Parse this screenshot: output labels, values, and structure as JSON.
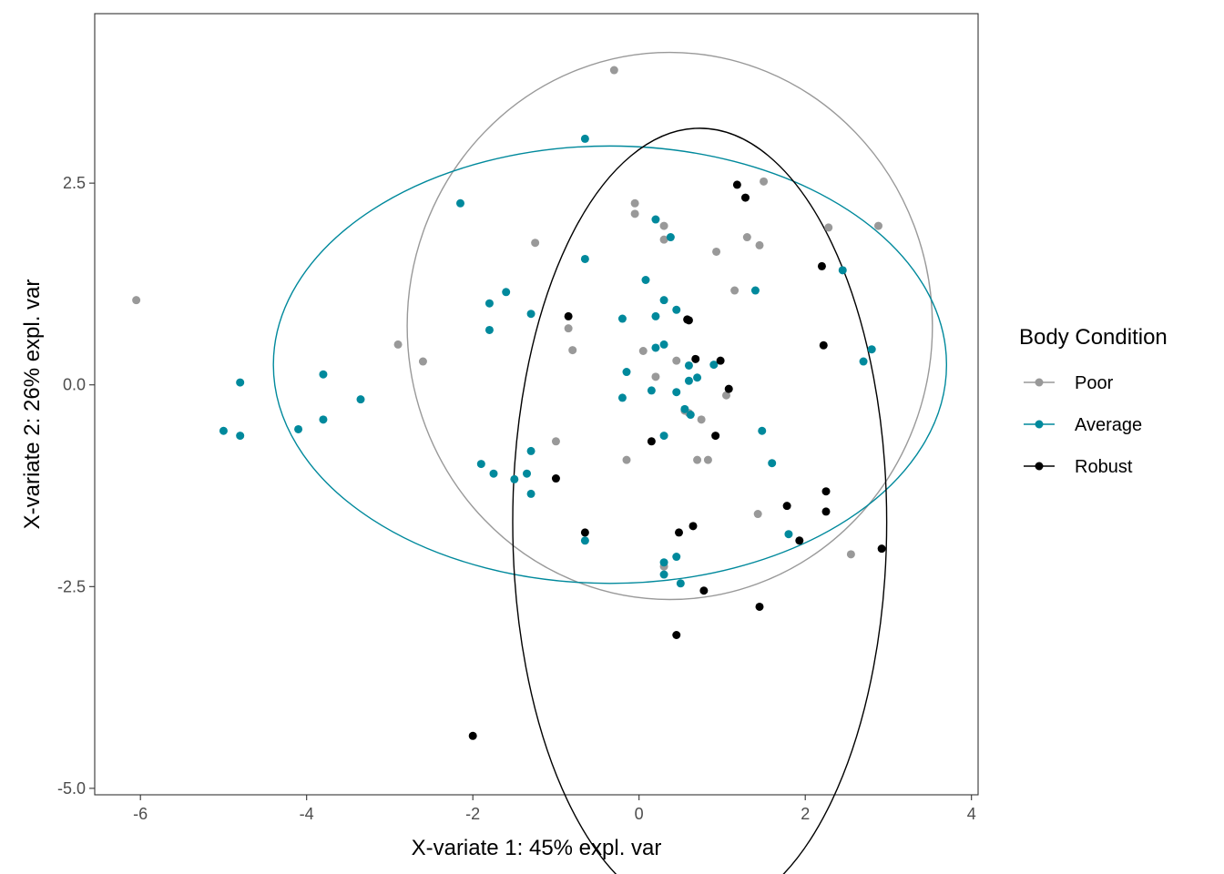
{
  "chart_data": {
    "type": "scatter",
    "xlabel": "X-variate 1: 45% expl. var",
    "ylabel": "X-variate 2: 26% expl. var",
    "xlim": [
      -6.55,
      4.08
    ],
    "ylim": [
      -5.08,
      4.6
    ],
    "x_ticks": [
      -6,
      -4,
      -2,
      0,
      2,
      4
    ],
    "x_tick_labels": [
      "-6",
      "-4",
      "-2",
      "0",
      "2",
      "4"
    ],
    "y_ticks": [
      -5.0,
      -2.5,
      0.0,
      2.5
    ],
    "y_tick_labels": [
      "-5.0",
      "-2.5",
      "0.0",
      "2.5"
    ],
    "grid": false,
    "legend": {
      "title": "Body Condition",
      "position": "right",
      "entries": [
        "Poor",
        "Average",
        "Robust"
      ]
    },
    "series": [
      {
        "name": "Poor",
        "color": "#999999",
        "ellipse": {
          "center": [
            0.37,
            0.73
          ],
          "radii": [
            3.16,
            3.39
          ]
        },
        "points": [
          [
            -6.05,
            1.05
          ],
          [
            -0.3,
            3.9
          ],
          [
            -1.25,
            1.76
          ],
          [
            -2.9,
            0.5
          ],
          [
            -2.6,
            0.29
          ],
          [
            -0.05,
            2.25
          ],
          [
            -0.05,
            2.12
          ],
          [
            0.3,
            1.97
          ],
          [
            0.3,
            1.8
          ],
          [
            -0.85,
            0.7
          ],
          [
            -0.8,
            0.43
          ],
          [
            0.05,
            0.42
          ],
          [
            0.2,
            0.1
          ],
          [
            -1.0,
            -0.7
          ],
          [
            -0.15,
            -0.93
          ],
          [
            0.45,
            0.3
          ],
          [
            0.55,
            -0.32
          ],
          [
            0.6,
            -0.35
          ],
          [
            0.75,
            -0.43
          ],
          [
            0.7,
            -0.93
          ],
          [
            0.83,
            -0.93
          ],
          [
            0.93,
            1.65
          ],
          [
            1.15,
            1.17
          ],
          [
            1.05,
            -0.13
          ],
          [
            1.3,
            1.83
          ],
          [
            1.45,
            1.73
          ],
          [
            1.5,
            2.52
          ],
          [
            2.28,
            1.95
          ],
          [
            2.88,
            1.97
          ],
          [
            1.43,
            -1.6
          ],
          [
            2.55,
            -2.1
          ],
          [
            0.3,
            -2.25
          ]
        ]
      },
      {
        "name": "Average",
        "color": "#00899C",
        "ellipse": {
          "center": [
            -0.35,
            0.25
          ],
          "radii": [
            4.05,
            2.71
          ]
        },
        "points": [
          [
            -0.65,
            3.05
          ],
          [
            -2.15,
            2.25
          ],
          [
            -0.65,
            1.56
          ],
          [
            -1.6,
            1.15
          ],
          [
            -1.8,
            1.01
          ],
          [
            -1.8,
            0.68
          ],
          [
            -1.3,
            0.88
          ],
          [
            -4.8,
            0.03
          ],
          [
            -3.8,
            0.13
          ],
          [
            -3.35,
            -0.18
          ],
          [
            -5.0,
            -0.57
          ],
          [
            -4.8,
            -0.63
          ],
          [
            -4.1,
            -0.55
          ],
          [
            -3.8,
            -0.43
          ],
          [
            -1.9,
            -0.98
          ],
          [
            -1.75,
            -1.1
          ],
          [
            -1.5,
            -1.17
          ],
          [
            -1.35,
            -1.1
          ],
          [
            -1.3,
            -0.82
          ],
          [
            -1.3,
            -1.35
          ],
          [
            -0.65,
            -1.93
          ],
          [
            -0.2,
            0.82
          ],
          [
            0.08,
            1.3
          ],
          [
            0.2,
            2.05
          ],
          [
            0.38,
            1.83
          ],
          [
            0.3,
            1.05
          ],
          [
            0.2,
            0.85
          ],
          [
            0.45,
            0.93
          ],
          [
            0.3,
            0.5
          ],
          [
            0.2,
            0.46
          ],
          [
            -0.15,
            0.16
          ],
          [
            -0.2,
            -0.16
          ],
          [
            0.15,
            -0.07
          ],
          [
            0.6,
            0.24
          ],
          [
            0.6,
            0.05
          ],
          [
            0.7,
            0.09
          ],
          [
            0.9,
            0.25
          ],
          [
            0.45,
            -0.09
          ],
          [
            0.55,
            -0.3
          ],
          [
            0.62,
            -0.37
          ],
          [
            0.3,
            -0.63
          ],
          [
            1.4,
            1.17
          ],
          [
            1.48,
            -0.57
          ],
          [
            1.6,
            -0.97
          ],
          [
            1.8,
            -1.85
          ],
          [
            2.45,
            1.42
          ],
          [
            2.8,
            0.44
          ],
          [
            2.7,
            0.29
          ],
          [
            0.3,
            -2.2
          ],
          [
            0.3,
            -2.35
          ],
          [
            0.45,
            -2.13
          ],
          [
            0.5,
            -2.46
          ]
        ]
      },
      {
        "name": "Robust",
        "color": "#000000",
        "ellipse": {
          "center": [
            0.73,
            -1.7
          ],
          "radii": [
            2.25,
            4.88
          ]
        },
        "points": [
          [
            1.18,
            2.48
          ],
          [
            1.28,
            2.32
          ],
          [
            2.2,
            1.47
          ],
          [
            2.22,
            0.49
          ],
          [
            -0.85,
            0.85
          ],
          [
            0.58,
            0.81
          ],
          [
            0.6,
            0.8
          ],
          [
            0.68,
            0.32
          ],
          [
            0.98,
            0.3
          ],
          [
            1.08,
            -0.05
          ],
          [
            0.15,
            -0.7
          ],
          [
            0.92,
            -0.63
          ],
          [
            -1.0,
            -1.16
          ],
          [
            -0.65,
            -1.83
          ],
          [
            0.48,
            -1.83
          ],
          [
            0.65,
            -1.75
          ],
          [
            1.78,
            -1.5
          ],
          [
            1.93,
            -1.93
          ],
          [
            2.25,
            -1.32
          ],
          [
            2.25,
            -1.57
          ],
          [
            2.92,
            -2.03
          ],
          [
            0.78,
            -2.55
          ],
          [
            1.45,
            -2.75
          ],
          [
            0.45,
            -3.1
          ],
          [
            -2.0,
            -4.35
          ]
        ]
      }
    ]
  }
}
